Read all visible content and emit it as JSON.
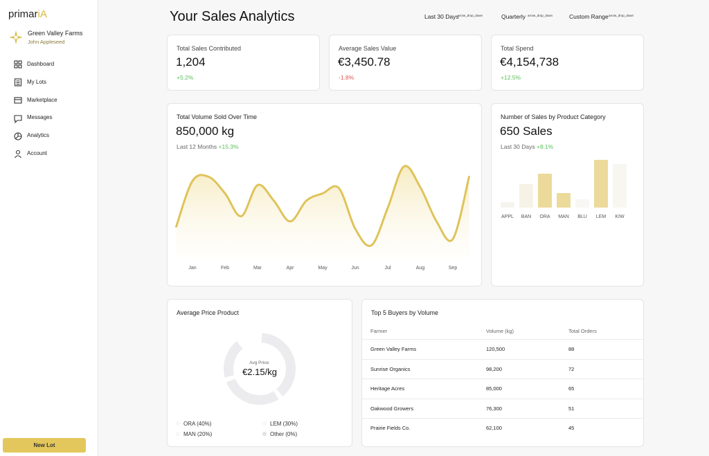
{
  "brand": {
    "text": "primar",
    "accent": "iA"
  },
  "profile": {
    "farm": "Green Valley Farms",
    "user": "John Appleseed"
  },
  "nav": [
    "Dashboard",
    "My Lots",
    "Marketplace",
    "Messages",
    "Analytics",
    "Account"
  ],
  "new_lot": "New Lot",
  "header": {
    "title": "Your Sales Analytics",
    "filters": [
      {
        "label": "Last 30 Days",
        "icon": "arrow_drop_down"
      },
      {
        "label": "Quarterly",
        "icon": "arrow_drop_down"
      },
      {
        "label": "Custom Range",
        "icon": "arrow_drop_down"
      }
    ]
  },
  "kpis": [
    {
      "label": "Total Sales Contributed",
      "value": "1,204",
      "change": "+5.2%",
      "color": "#5cbf5c"
    },
    {
      "label": "Average Sales Value",
      "value": "€3,450.78",
      "change": "-1.8%",
      "color": "#e05555"
    },
    {
      "label": "Total Spend",
      "value": "€4,154,738",
      "change": "+12.5%",
      "color": "#5cbf5c"
    }
  ],
  "chart_data": [
    {
      "type": "line",
      "title": "Total Volume Sold Over Time",
      "headline": "850,000 kg",
      "period": "Last 12 Months",
      "change": "+15.3%",
      "change_color": "#5cbf5c",
      "categories": [
        null,
        "Jan",
        null,
        "Feb",
        null,
        "Mar",
        null,
        "Apr",
        null,
        "May",
        null,
        "Jun",
        null,
        "Jul",
        null,
        "Aug",
        null,
        "Sep",
        null
      ],
      "values": [
        35,
        79,
        83,
        67,
        45,
        75,
        60,
        40,
        60,
        67,
        72,
        33,
        17,
        53,
        93,
        73,
        40,
        23,
        83
      ],
      "ylim": [
        0,
        100
      ],
      "color": "#dfc35a"
    },
    {
      "type": "bar",
      "title": "Number of Sales by Product Category",
      "headline": "650 Sales",
      "period": "Last 30 Days",
      "change": "+8.1%",
      "change_color": "#5cbf5c",
      "categories": [
        "APPL",
        "BAN",
        "ORA",
        "MAN",
        "BLU",
        "LEM",
        "KIW"
      ],
      "values": [
        8,
        34,
        49,
        21,
        12,
        69,
        63
      ],
      "ylim": [
        0,
        70
      ],
      "colors": [
        "#f6f4ee",
        "#f6f2e6",
        "#ecda9b",
        "#ecda9b",
        "#f8f7f3",
        "#ecda9b",
        "#f8f6f0"
      ]
    },
    {
      "type": "pie",
      "title": "Average Price Product",
      "center_label": "Avg Price:",
      "center_value": "€2.15/kg",
      "values": [
        40,
        30,
        20,
        0
      ],
      "value_labels": [
        "ORA (40%)",
        "LEM (30%)",
        "MAN (20%)",
        "Other (0%)"
      ],
      "colors": [
        "#ececee",
        "#ececee",
        "#ececee",
        "#e2e2e4"
      ]
    }
  ],
  "table": {
    "title": "Top 5 Buyers by Volume",
    "columns": [
      "Farmer",
      "Volume (kg)",
      "Total Orders"
    ],
    "rows": [
      [
        "Green Valley Farms",
        "120,500",
        "88"
      ],
      [
        "Sunrise Organics",
        "98,200",
        "72"
      ],
      [
        "Heritage Acres",
        "85,000",
        "65"
      ],
      [
        "Oakwood Growers",
        "76,300",
        "51"
      ],
      [
        "Prairie Fields Co.",
        "62,100",
        "45"
      ]
    ]
  }
}
